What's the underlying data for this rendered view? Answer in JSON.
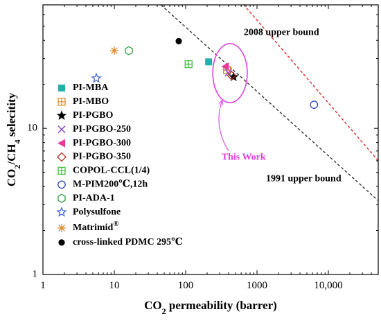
{
  "chart_data": {
    "type": "scatter",
    "xlabel": "CO2 permeability (barrer)",
    "ylabel": "CO2/CH4 selecitity",
    "x_scale": "log",
    "y_scale": "log",
    "xlim": [
      1,
      50000
    ],
    "ylim": [
      1,
      70
    ],
    "x_ticks": [
      {
        "value": 1,
        "label": "1"
      },
      {
        "value": 10,
        "label": "10"
      },
      {
        "value": 100,
        "label": "100"
      },
      {
        "value": 1000,
        "label": "1000"
      },
      {
        "value": 10000,
        "label": "10,000"
      }
    ],
    "y_ticks": [
      {
        "value": 1,
        "label": "1"
      },
      {
        "value": 10,
        "label": "10"
      }
    ],
    "grid": false,
    "legend_position": "left",
    "series": [
      {
        "name": "PI-MBA",
        "marker": "square-filled",
        "color": "#20b2aa",
        "points": [
          {
            "x": 210,
            "y": 28.5
          }
        ]
      },
      {
        "name": "PI-MBO",
        "marker": "square-plus",
        "color": "#e08a2a",
        "points": [
          {
            "x": 380,
            "y": 25
          }
        ]
      },
      {
        "name": "PI-PGBO",
        "marker": "star-filled",
        "color": "#000000",
        "points": [
          {
            "x": 470,
            "y": 22.5
          }
        ]
      },
      {
        "name": "PI-PGBO-250",
        "marker": "x",
        "color": "#8a4fc8",
        "points": [
          {
            "x": 395,
            "y": 24
          }
        ]
      },
      {
        "name": "PI-PGBO-300",
        "marker": "triangle-left-filled",
        "color": "#e8389a",
        "points": [
          {
            "x": 360,
            "y": 26.5
          }
        ]
      },
      {
        "name": "PI-PGBO-350",
        "marker": "diamond",
        "color": "#b5332a",
        "points": [
          {
            "x": 440,
            "y": 23
          }
        ]
      },
      {
        "name": "COPOL-CCL(1/4)",
        "marker": "square-plus",
        "color": "#40c040",
        "points": [
          {
            "x": 110,
            "y": 27.5
          }
        ]
      },
      {
        "name": "M-PIM200℃,12h",
        "marker": "circle",
        "color": "#2a45b5",
        "points": [
          {
            "x": 6300,
            "y": 14.5
          }
        ]
      },
      {
        "name": "PI-ADA-1",
        "marker": "hexagon",
        "color": "#2e9e3e",
        "points": [
          {
            "x": 16,
            "y": 34
          }
        ]
      },
      {
        "name": "Polysulfone",
        "marker": "star-open",
        "color": "#3a5fd0",
        "points": [
          {
            "x": 5.6,
            "y": 22
          }
        ]
      },
      {
        "name": "Matrimid",
        "name_superscript": "®",
        "marker": "asterisk",
        "color": "#e08a2a",
        "points": [
          {
            "x": 10,
            "y": 34
          }
        ]
      },
      {
        "name": "cross-linked PDMC 295℃",
        "marker": "circle-filled",
        "color": "#000000",
        "points": [
          {
            "x": 80,
            "y": 39.5
          }
        ]
      }
    ],
    "upper_bounds": [
      {
        "name": "1991 upper bound",
        "color": "#333333",
        "points": [
          {
            "x": 20,
            "y": 100
          },
          {
            "x": 50000,
            "y": 3.2
          }
        ]
      },
      {
        "name": "2008 upper bound",
        "color": "#e02a2a",
        "points": [
          {
            "x": 50,
            "y": 300
          },
          {
            "x": 50000,
            "y": 6
          }
        ]
      }
    ],
    "annotations": [
      {
        "text": "This Work",
        "color": "#e040e0",
        "x": 650,
        "y": 6.3
      },
      {
        "text": "2008 upper bound",
        "color": "#000000",
        "x": 2200,
        "y": 45
      },
      {
        "text": "1991 upper bound",
        "color": "#000000",
        "x": 4500,
        "y": 4.5
      }
    ],
    "highlight_ellipse": {
      "color": "#e040e0",
      "center": {
        "x": 400,
        "y": 23
      },
      "x_range": [
        240,
        730
      ],
      "y_range": [
        15,
        38
      ]
    }
  }
}
